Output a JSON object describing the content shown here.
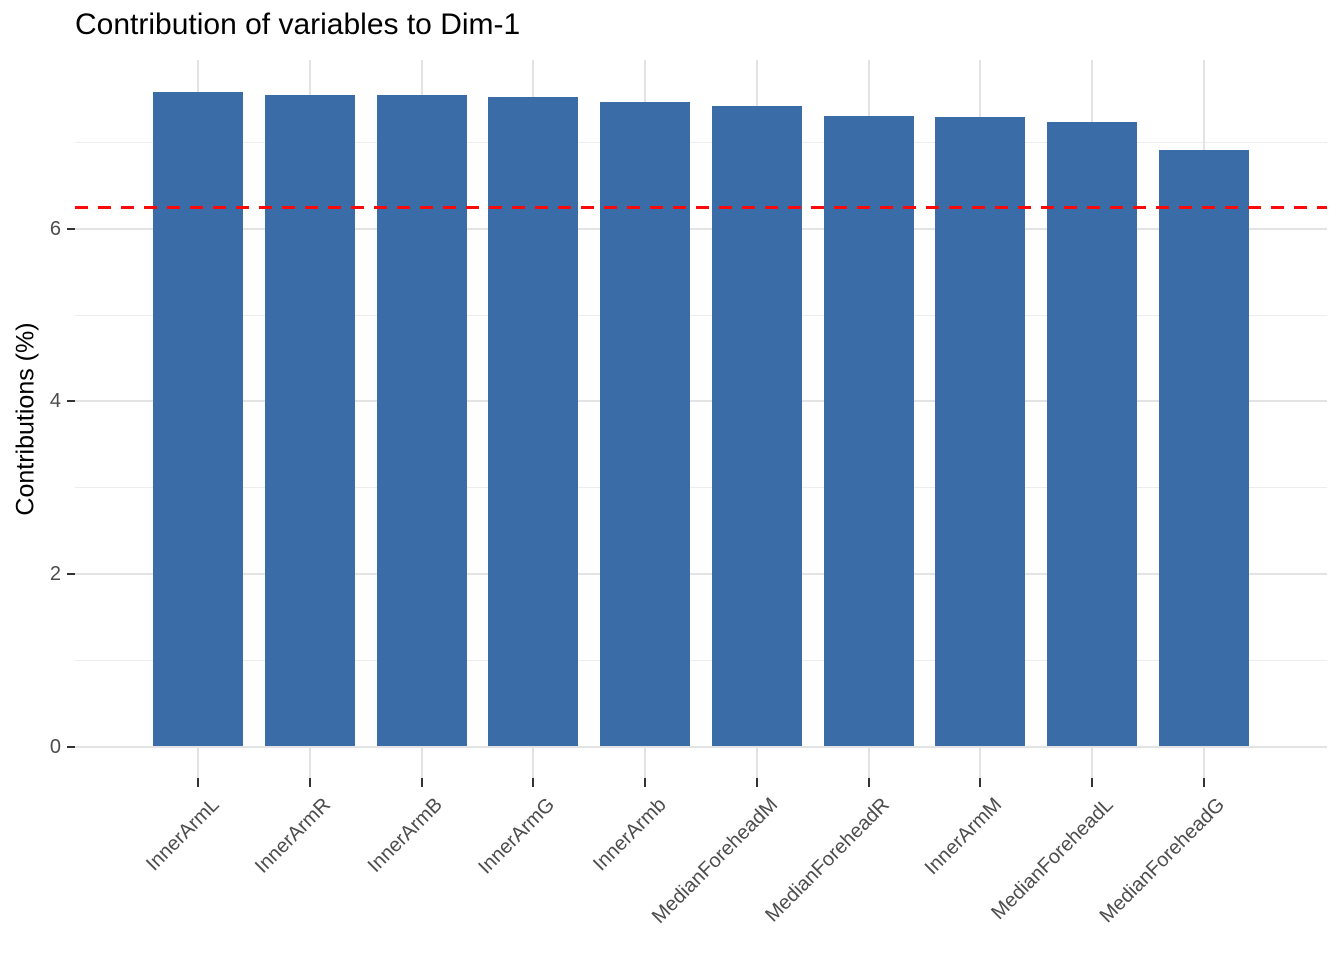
{
  "title": "Contribution of variables to Dim-1",
  "chart_data": {
    "type": "bar",
    "title": "Contribution of variables to Dim-1",
    "xlabel": "",
    "ylabel": "Contributions (%)",
    "categories": [
      "InnerArmL",
      "InnerArmR",
      "InnerArmB",
      "InnerArmG",
      "InnerArmb",
      "MedianForeheadM",
      "MedianForeheadR",
      "InnerArmM",
      "MedianForeheadL",
      "MedianForeheadG"
    ],
    "values": [
      7.58,
      7.55,
      7.55,
      7.53,
      7.47,
      7.42,
      7.31,
      7.3,
      7.24,
      6.91
    ],
    "reference_line": 6.25,
    "reference_line_style": "dashed",
    "y_ticks": [
      0,
      2,
      4,
      6
    ],
    "y_minor_ticks": [
      1,
      3,
      5,
      7
    ],
    "ylim": [
      -0.37,
      7.96
    ],
    "x_label_rotation": 45,
    "grid": true,
    "legend": "none",
    "colors": {
      "bar": "#3A6DA8",
      "reference_line": "#FA0A0A",
      "grid_major": "#E3E3E3",
      "grid_minor": "#EDEDED",
      "axis_tick": "#333333",
      "tick_label": "#4D4D4D",
      "title_text": "#000000"
    }
  }
}
